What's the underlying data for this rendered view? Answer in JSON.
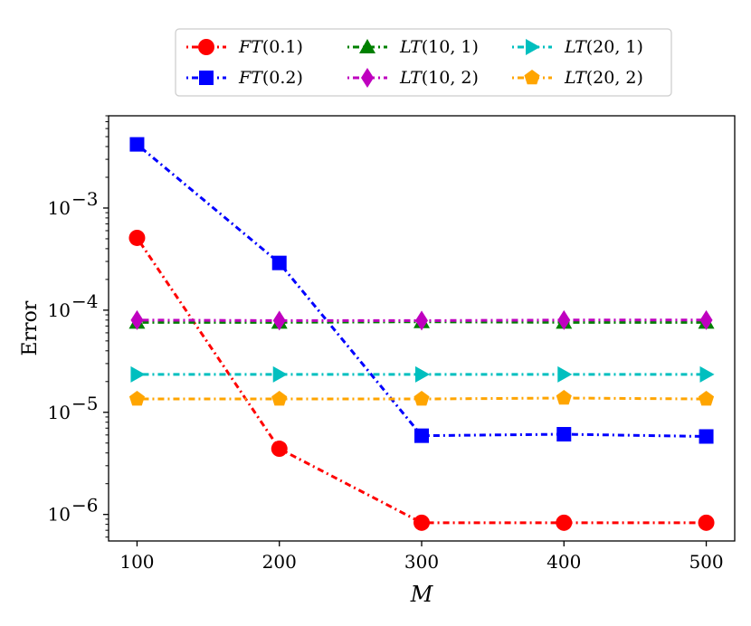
{
  "chart_data": {
    "type": "line",
    "xlabel": "M",
    "ylabel": "Error",
    "x": [
      100,
      200,
      300,
      400,
      500
    ],
    "xlim": [
      80,
      520
    ],
    "ylim": [
      5.5e-07,
      0.008
    ],
    "yscale": "log",
    "xticks": [
      "100",
      "200",
      "300",
      "400",
      "500"
    ],
    "yticks": [
      {
        "value": 1e-06,
        "label": "10",
        "exp": "−6"
      },
      {
        "value": 1e-05,
        "label": "10",
        "exp": "−5"
      },
      {
        "value": 0.0001,
        "label": "10",
        "exp": "−4"
      },
      {
        "value": 0.001,
        "label": "10",
        "exp": "−3"
      }
    ],
    "grid": false,
    "legend_position": "top-center (outside plot)",
    "series": [
      {
        "name": "FT(0.1)",
        "name_parts": [
          "FT",
          "(0.1)"
        ],
        "color": "#ff0000",
        "marker": "circle",
        "dash": "2,4,7,4",
        "values": [
          0.00051,
          4.4e-06,
          8.3e-07,
          8.3e-07,
          8.3e-07
        ]
      },
      {
        "name": "FT(0.2)",
        "name_parts": [
          "FT",
          "(0.2)"
        ],
        "color": "#0000ff",
        "marker": "square",
        "dash": "2,4,7,4",
        "values": [
          0.0042,
          0.00029,
          5.9e-06,
          6.1e-06,
          5.8e-06
        ]
      },
      {
        "name": "LT(10,1)",
        "name_parts": [
          "LT",
          "(10, 1)"
        ],
        "color": "#008000",
        "marker": "triangle-up",
        "dash": "2,4,7,4",
        "values": [
          7.6e-05,
          7.6e-05,
          7.7e-05,
          7.6e-05,
          7.6e-05
        ]
      },
      {
        "name": "LT(10,2)",
        "name_parts": [
          "LT",
          "(10, 2)"
        ],
        "color": "#bf00bf",
        "marker": "diamond",
        "dash": "2,4,7,4",
        "values": [
          8e-05,
          7.9e-05,
          7.9e-05,
          8e-05,
          8e-05
        ]
      },
      {
        "name": "LT(20,1)",
        "name_parts": [
          "LT",
          "(20, 1)"
        ],
        "color": "#00bfbf",
        "marker": "triangle-right",
        "dash": "2,4,7,4",
        "values": [
          2.35e-05,
          2.35e-05,
          2.35e-05,
          2.35e-05,
          2.35e-05
        ]
      },
      {
        "name": "LT(20,2)",
        "name_parts": [
          "LT",
          "(20, 2)"
        ],
        "color": "#ffa500",
        "marker": "pentagon",
        "dash": "2,4,7,4",
        "values": [
          1.35e-05,
          1.35e-05,
          1.35e-05,
          1.38e-05,
          1.35e-05
        ]
      }
    ]
  }
}
